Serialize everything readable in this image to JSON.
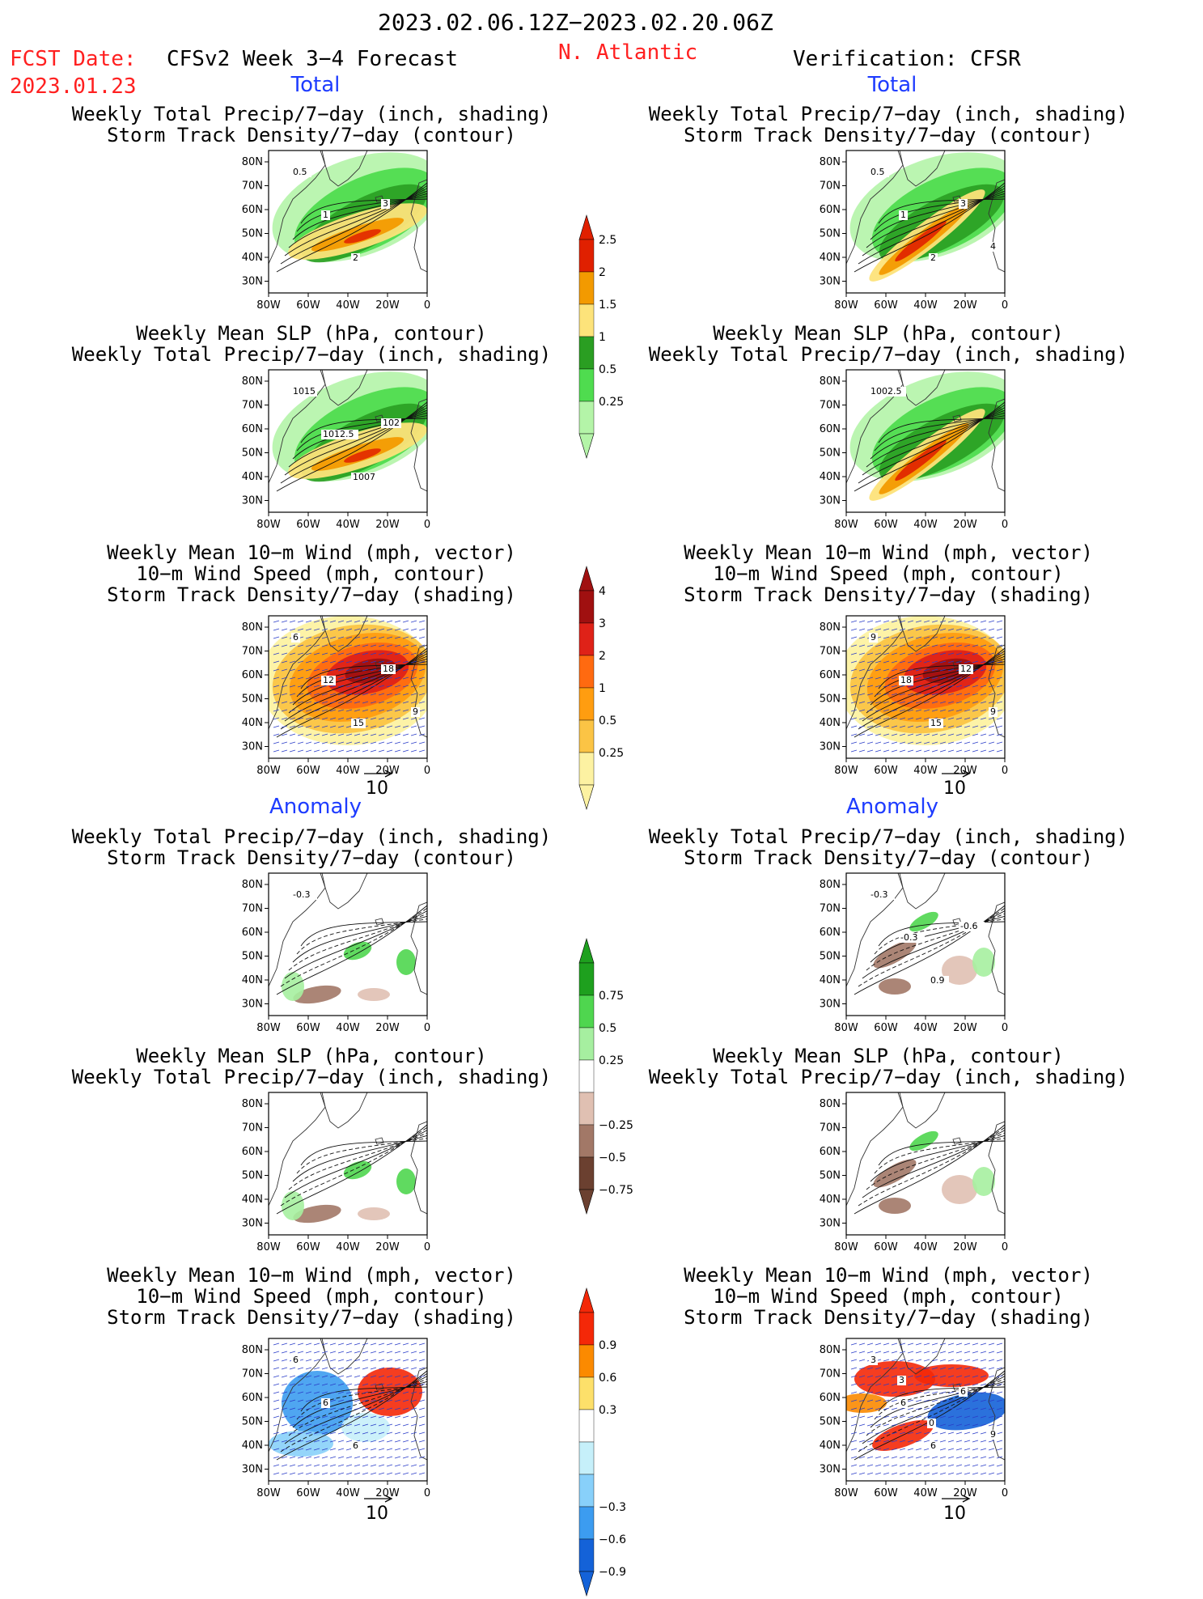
{
  "header": {
    "date_range": "2023.02.06.12Z−2023.02.20.06Z",
    "fcst_label": "FCST Date:",
    "fcst_date": "2023.01.23",
    "model": "CFSv2 Week 3−4 Forecast",
    "region": "N. Atlantic",
    "verification": "Verification: CFSR"
  },
  "sections": {
    "total": "Total",
    "anomaly": "Anomaly"
  },
  "panel_titles": {
    "precip_storm": [
      "Weekly Total Precip/7−day (inch, shading)",
      "Storm Track Density/7−day (contour)"
    ],
    "slp_precip": [
      "Weekly Mean SLP (hPa, contour)",
      "Weekly Total Precip/7−day (inch, shading)"
    ],
    "wind_storm": [
      "Weekly Mean 10−m Wind (mph, vector)",
      "10−m Wind Speed (mph, contour)",
      "Storm Track Density/7−day (shading)"
    ]
  },
  "axes": {
    "lat_ticks": [
      "80N",
      "70N",
      "60N",
      "50N",
      "40N",
      "30N"
    ],
    "lon_ticks": [
      "80W",
      "60W",
      "40W",
      "20W",
      "0"
    ]
  },
  "reference_vector": "10",
  "panels": [
    {
      "id": "fc-total-precip",
      "contours": [
        "0.5",
        "1",
        "2",
        "3"
      ]
    },
    {
      "id": "obs-total-precip",
      "contours": [
        "0.5",
        "1",
        "2",
        "3",
        "4"
      ]
    },
    {
      "id": "fc-total-slp",
      "contours": [
        "1015",
        "1012.5",
        "1007",
        "102"
      ]
    },
    {
      "id": "obs-total-slp",
      "contours": [
        "1002.5"
      ]
    },
    {
      "id": "fc-total-wind",
      "contours": [
        "6",
        "12",
        "15",
        "18",
        "9"
      ]
    },
    {
      "id": "obs-total-wind",
      "contours": [
        "9",
        "18",
        "15",
        "12",
        "9"
      ]
    },
    {
      "id": "fc-anom-precip",
      "contours": [
        "-0.3"
      ]
    },
    {
      "id": "obs-anom-precip",
      "contours": [
        "-0.3",
        "-0.3",
        "0.9",
        "-0.6"
      ]
    },
    {
      "id": "fc-anom-slp",
      "contours": []
    },
    {
      "id": "obs-anom-slp",
      "contours": []
    },
    {
      "id": "fc-anom-wind",
      "contours": [
        "6",
        "6",
        "6"
      ]
    },
    {
      "id": "obs-anom-wind",
      "contours": [
        "3",
        "6",
        "6",
        "6",
        "9",
        "3",
        "0"
      ]
    }
  ],
  "colorbars": {
    "precip_total": {
      "labels": [
        "2.5",
        "2",
        "1.5",
        "1",
        "0.5",
        "0.25"
      ],
      "colors": [
        "#e02000",
        "#f39a00",
        "#fde37a",
        "#2a9e22",
        "#4fdc4f",
        "#b4f4a8"
      ]
    },
    "storm_total": {
      "labels": [
        "4",
        "3",
        "2",
        "1",
        "0.5",
        "0.25"
      ],
      "colors": [
        "#a01010",
        "#df2218",
        "#ff6a10",
        "#ff9d10",
        "#fbc445",
        "#fdf2a2"
      ]
    },
    "precip_anom": {
      "labels": [
        "0.75",
        "0.5",
        "0.25",
        "−0.25",
        "−0.5",
        "−0.75"
      ],
      "colors": [
        "#1ea01e",
        "#4fd64f",
        "#a6efa0",
        "#ffffff",
        "#e0c0b2",
        "#a27867",
        "#6b4030"
      ]
    },
    "storm_anom": {
      "labels": [
        "0.9",
        "0.6",
        "0.3",
        "−0.3",
        "−0.6",
        "−0.9"
      ],
      "colors": [
        "#f42808",
        "#fb8a00",
        "#fde06a",
        "#ffffff",
        "#c6f0fa",
        "#88d0fa",
        "#3c9cf0",
        "#1462d8"
      ]
    }
  }
}
